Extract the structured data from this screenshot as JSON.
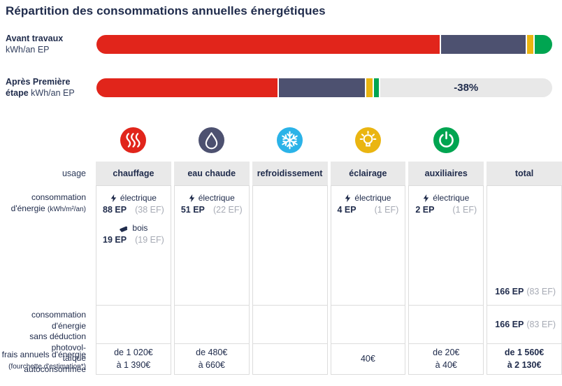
{
  "title": "Répartition des consommations annuelles énergétiques",
  "bars_section": {
    "bar1": {
      "label_bold": "Avant travaux",
      "unit": "kWh/an EP"
    },
    "bar2": {
      "label_line1": "Après Première",
      "label_line2_bold": "étape",
      "unit": "kWh/an EP",
      "badge": "-38%"
    }
  },
  "icons": [
    {
      "name": "heat-icon",
      "color": "#e1251b"
    },
    {
      "name": "water-drop-icon",
      "color": "#4d5170"
    },
    {
      "name": "snowflake-icon",
      "color": "#2bb3e8"
    },
    {
      "name": "bulb-icon",
      "color": "#eab511"
    },
    {
      "name": "power-icon",
      "color": "#00a551"
    }
  ],
  "table": {
    "headers": [
      "usage",
      "chauffage",
      "eau chaude",
      "refroidissement",
      "éclairage",
      "auxiliaires",
      "total"
    ],
    "consumption": {
      "label1": "consommation",
      "label2": "d'énergie",
      "unit": "(kWh/m²/an)",
      "chauffage": {
        "e1_source": "électrique",
        "e1_ep": "88 EP",
        "e1_ef": "(38 EF)",
        "e2_source": "bois",
        "e2_ep": "19 EP",
        "e2_ef": "(19 EF)"
      },
      "eau_chaude": {
        "e1_source": "électrique",
        "e1_ep": "51 EP",
        "e1_ef": "(22 EF)"
      },
      "eclairage": {
        "e1_source": "électrique",
        "e1_ep": "4 EP",
        "e1_ef": "(1 EF)"
      },
      "auxiliaires": {
        "e1_source": "électrique",
        "e1_ep": "2 EP",
        "e1_ef": "(1 EF)"
      },
      "total_ep": "166 EP",
      "total_ef": "(83 EF)"
    },
    "pv": {
      "label1": "consommation d'énergie",
      "label2": "sans déduction photovol-",
      "label3": "taïque autoconsommée",
      "total_ep": "166 EP",
      "total_ef": "(83 EF)"
    },
    "cost": {
      "label": "frais annuels d'énergie",
      "sub": "(fourchette d'estimation*)",
      "chauffage1": "de 1 020€",
      "chauffage2": "à 1 390€",
      "eau1": "de 480€",
      "eau2": "à 660€",
      "eclairage": "40€",
      "aux1": "de 20€",
      "aux2": "à 40€",
      "total1": "de 1 560€",
      "total2": "à 2 130€"
    }
  },
  "chart_data": [
    {
      "type": "bar",
      "title": "Répartition des consommations annuelles énergétiques",
      "orientation": "horizontal-stacked",
      "unit": "kWh/an EP",
      "legend_position": "none",
      "bars": [
        {
          "label": "Avant travaux kWh/an EP",
          "segments": [
            {
              "name": "chauffage",
              "color": "#e1251b",
              "share_pct": 75.3
            },
            {
              "name": "eau-chaude",
              "color": "#4d5170",
              "share_pct": 18.9
            },
            {
              "name": "eclairage",
              "color": "#eab511",
              "share_pct": 1.7
            },
            {
              "name": "auxiliaires",
              "color": "#00a551",
              "share_pct": 4.1
            }
          ]
        },
        {
          "label": "Après Première étape kWh/an EP",
          "annotation": "-38%",
          "segments": [
            {
              "name": "chauffage",
              "color": "#e1251b",
              "share_pct": 39.8
            },
            {
              "name": "eau-chaude",
              "color": "#4d5170",
              "share_pct": 19.1
            },
            {
              "name": "eclairage",
              "color": "#eab511",
              "share_pct": 1.7
            },
            {
              "name": "auxiliaires",
              "color": "#00a551",
              "share_pct": 1.3
            },
            {
              "name": "economie",
              "color": "#e8e8e8",
              "share_pct": 38.1,
              "label": "-38%"
            }
          ]
        }
      ]
    },
    {
      "type": "table",
      "columns": [
        "usage",
        "chauffage",
        "eau chaude",
        "refroidissement",
        "éclairage",
        "auxiliaires",
        "total"
      ],
      "rows": [
        {
          "label": "consommation d'énergie (kWh/m²/an)",
          "chauffage": "électrique 88 EP (38 EF); bois 19 EP (19 EF)",
          "eau chaude": "électrique 51 EP (22 EF)",
          "refroidissement": "",
          "éclairage": "électrique 4 EP (1 EF)",
          "auxiliaires": "électrique 2 EP (1 EF)",
          "total": "166 EP (83 EF)"
        },
        {
          "label": "consommation d'énergie sans déduction photovoltaïque autoconsommée",
          "chauffage": "",
          "eau chaude": "",
          "refroidissement": "",
          "éclairage": "",
          "auxiliaires": "",
          "total": "166 EP (83 EF)"
        },
        {
          "label": "frais annuels d'énergie (fourchette d'estimation*)",
          "chauffage": "de 1 020€ à 1 390€",
          "eau chaude": "de 480€ à 660€",
          "refroidissement": "",
          "éclairage": "40€",
          "auxiliaires": "de 20€ à 40€",
          "total": "de 1 560€ à 2 130€"
        }
      ]
    }
  ]
}
